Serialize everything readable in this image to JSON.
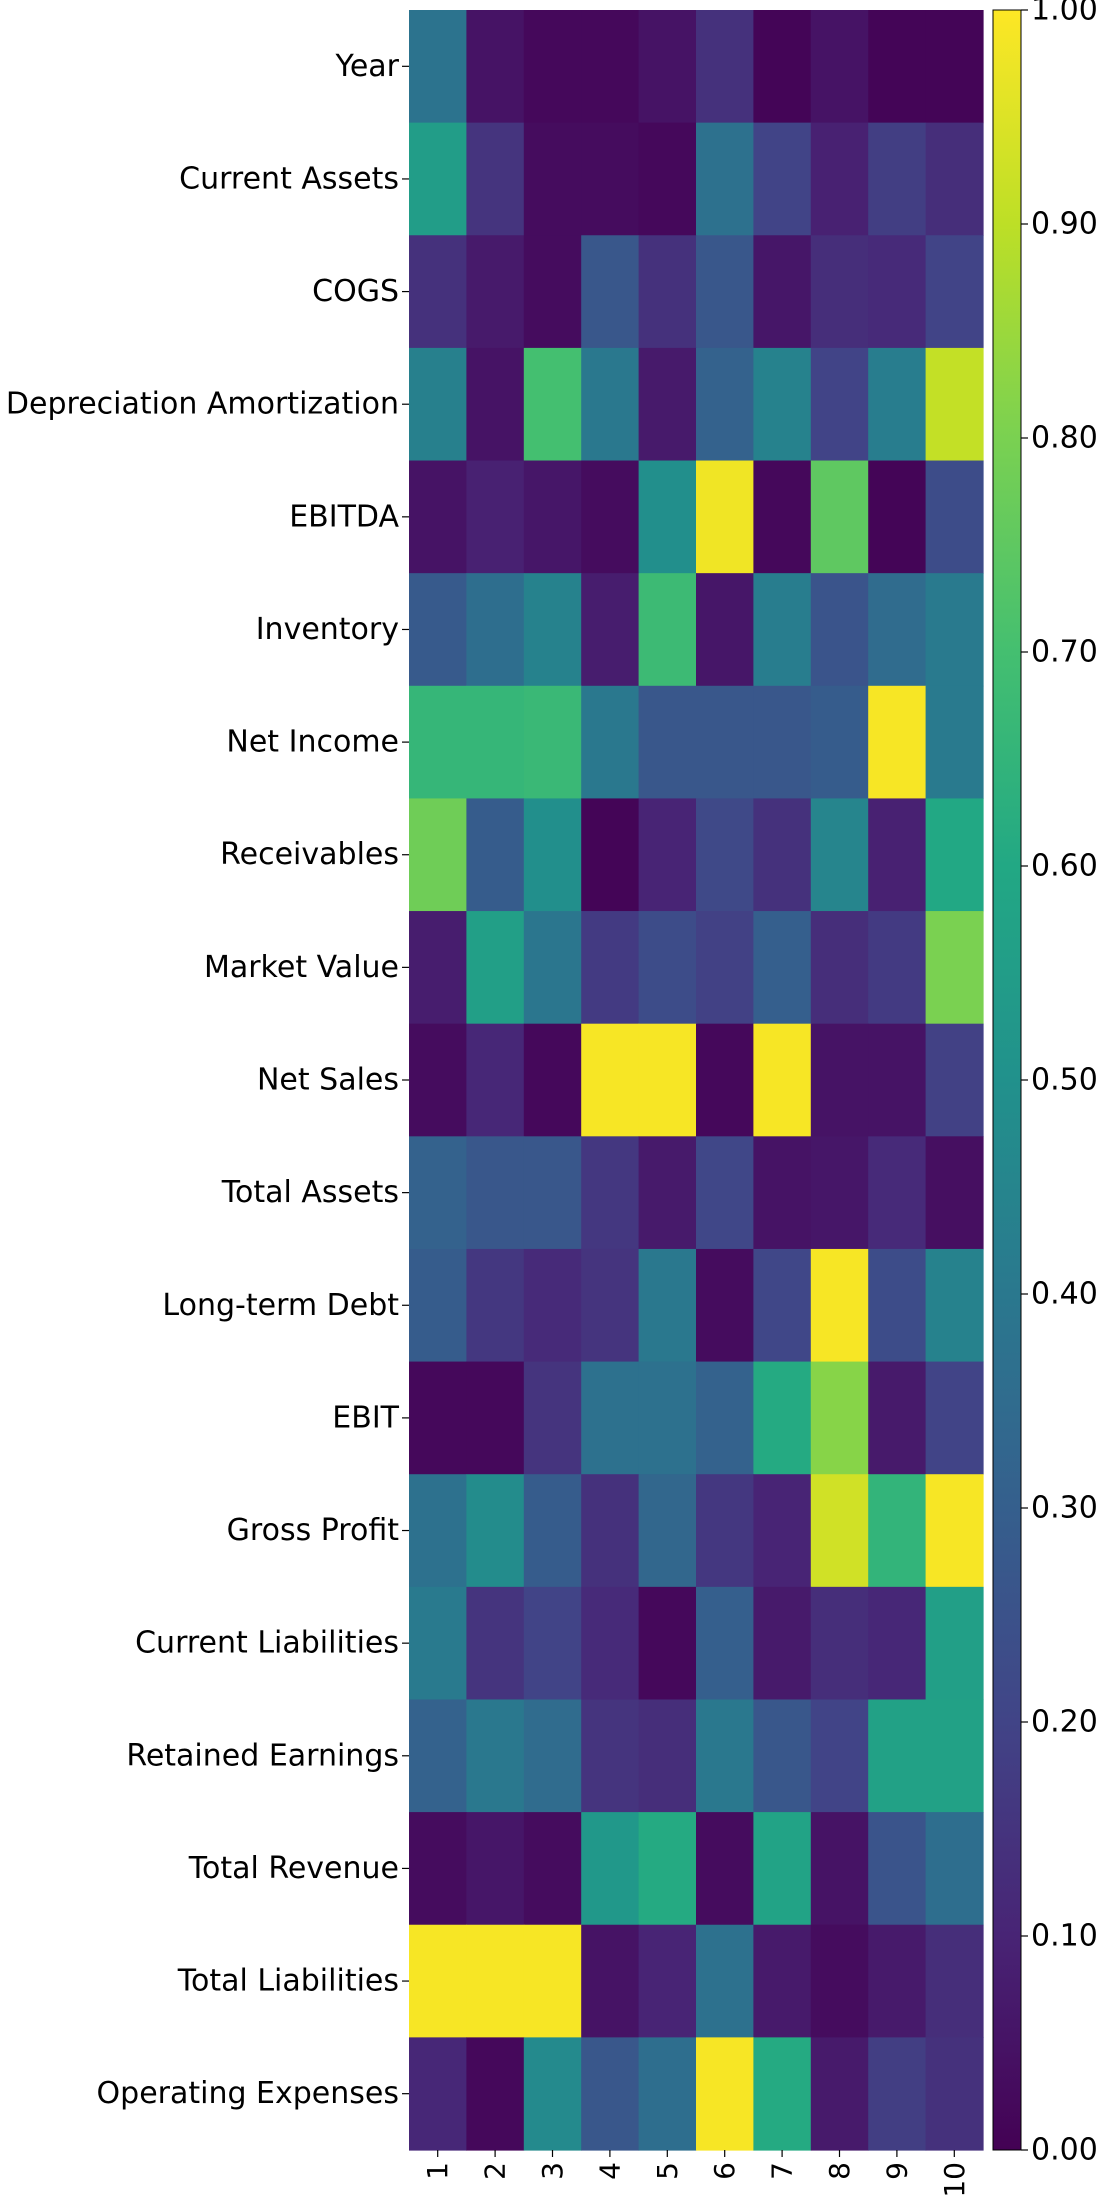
{
  "chart_data": {
    "type": "heatmap",
    "title": "",
    "xlabel": "",
    "ylabel": "",
    "colormap": "viridis",
    "x_categories": [
      "1",
      "2",
      "3",
      "4",
      "5",
      "6",
      "7",
      "8",
      "9",
      "10"
    ],
    "y_categories": [
      "Year",
      "Current Assets",
      "COGS",
      "Depreciation Amortization",
      "EBITDA",
      "Inventory",
      "Net Income",
      "Receivables",
      "Market Value",
      "Net Sales",
      "Total Assets",
      "Long-term Debt",
      "EBIT",
      "Gross Profit",
      "Current Liabilities",
      "Retained Earnings",
      "Total Revenue",
      "Total Liabilities",
      "Operating Expenses"
    ],
    "values": [
      [
        0.38,
        0.05,
        0.02,
        0.02,
        0.05,
        0.14,
        0.01,
        0.05,
        0.01,
        0.01
      ],
      [
        0.55,
        0.15,
        0.03,
        0.03,
        0.02,
        0.37,
        0.2,
        0.09,
        0.18,
        0.13
      ],
      [
        0.14,
        0.07,
        0.03,
        0.27,
        0.14,
        0.27,
        0.06,
        0.13,
        0.12,
        0.2
      ],
      [
        0.43,
        0.05,
        0.7,
        0.4,
        0.07,
        0.31,
        0.44,
        0.2,
        0.42,
        0.91
      ],
      [
        0.05,
        0.09,
        0.06,
        0.03,
        0.49,
        0.98,
        0.02,
        0.75,
        0.01,
        0.23
      ],
      [
        0.28,
        0.36,
        0.44,
        0.08,
        0.68,
        0.06,
        0.42,
        0.26,
        0.35,
        0.41
      ],
      [
        0.66,
        0.66,
        0.67,
        0.4,
        0.27,
        0.27,
        0.27,
        0.29,
        0.99,
        0.41
      ],
      [
        0.78,
        0.29,
        0.49,
        0.01,
        0.1,
        0.22,
        0.14,
        0.45,
        0.09,
        0.6
      ],
      [
        0.08,
        0.56,
        0.39,
        0.17,
        0.23,
        0.19,
        0.3,
        0.13,
        0.17,
        0.8
      ],
      [
        0.03,
        0.11,
        0.02,
        0.99,
        0.99,
        0.02,
        0.99,
        0.05,
        0.05,
        0.19
      ],
      [
        0.31,
        0.27,
        0.27,
        0.16,
        0.07,
        0.21,
        0.05,
        0.06,
        0.12,
        0.04
      ],
      [
        0.29,
        0.16,
        0.12,
        0.15,
        0.4,
        0.03,
        0.21,
        0.99,
        0.23,
        0.44
      ],
      [
        0.02,
        0.02,
        0.15,
        0.37,
        0.37,
        0.31,
        0.61,
        0.82,
        0.07,
        0.2
      ],
      [
        0.37,
        0.48,
        0.29,
        0.14,
        0.33,
        0.16,
        0.1,
        0.93,
        0.65,
        0.99
      ],
      [
        0.41,
        0.15,
        0.2,
        0.12,
        0.02,
        0.3,
        0.07,
        0.13,
        0.11,
        0.56
      ],
      [
        0.31,
        0.4,
        0.35,
        0.15,
        0.13,
        0.4,
        0.27,
        0.2,
        0.57,
        0.57
      ],
      [
        0.03,
        0.06,
        0.03,
        0.53,
        0.61,
        0.03,
        0.58,
        0.05,
        0.26,
        0.36
      ],
      [
        0.99,
        0.99,
        0.99,
        0.05,
        0.1,
        0.37,
        0.07,
        0.03,
        0.07,
        0.13
      ],
      [
        0.11,
        0.02,
        0.47,
        0.27,
        0.36,
        0.99,
        0.61,
        0.07,
        0.18,
        0.14
      ]
    ],
    "colorbar": {
      "range": [
        0,
        1
      ],
      "ticks": [
        0.0,
        0.1,
        0.2,
        0.3,
        0.4,
        0.5,
        0.6,
        0.7,
        0.8,
        0.9,
        1.0
      ],
      "tick_labels": [
        "0.00",
        "0.10",
        "0.20",
        "0.30",
        "0.40",
        "0.50",
        "0.60",
        "0.70",
        "0.80",
        "0.90",
        "1.00"
      ]
    },
    "grid": false
  }
}
